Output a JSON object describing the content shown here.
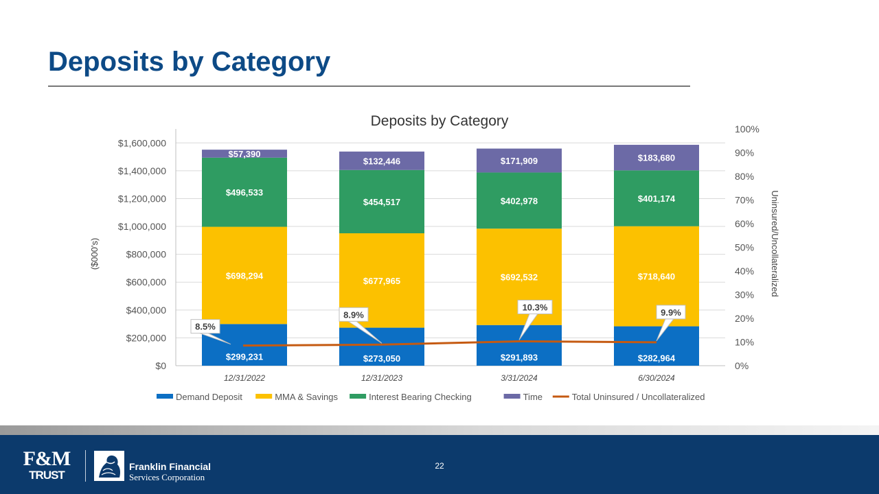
{
  "slide": {
    "title": "Deposits by Category",
    "page_number": "22"
  },
  "footer": {
    "logo_fm_mark": "F&M",
    "logo_fm_sub": "TRUST",
    "logo_ffsc_line1": "Franklin Financial",
    "logo_ffsc_line2": "Services Corporation"
  },
  "chart_data": {
    "type": "bar",
    "stacked": true,
    "title": "Deposits by Category",
    "ylabel": "($000's)",
    "y2label": "Uninsured/Uncollateralized",
    "categories": [
      "12/31/2022",
      "12/31/2023",
      "3/31/2024",
      "6/30/2024"
    ],
    "ylim": [
      0,
      1700000
    ],
    "yticks": [
      0,
      200000,
      400000,
      600000,
      800000,
      1000000,
      1200000,
      1400000,
      1600000
    ],
    "ytick_labels": [
      "$0",
      "$200,000",
      "$400,000",
      "$600,000",
      "$800,000",
      "$1,000,000",
      "$1,200,000",
      "$1,400,000",
      "$1,600,000"
    ],
    "y2lim": [
      0,
      100
    ],
    "y2ticks": [
      0,
      10,
      20,
      30,
      40,
      50,
      60,
      70,
      80,
      90,
      100
    ],
    "y2tick_labels": [
      "0%",
      "10%",
      "20%",
      "30%",
      "40%",
      "50%",
      "60%",
      "70%",
      "80%",
      "90%",
      "100%"
    ],
    "grid": true,
    "legend_position": "bottom",
    "series": [
      {
        "name": "Demand Deposit",
        "color": "#0c6fc4",
        "values": [
          299231,
          273050,
          291893,
          282964
        ],
        "labels": [
          "$299,231",
          "$273,050",
          "$291,893",
          "$282,964"
        ]
      },
      {
        "name": "MMA & Savings",
        "color": "#fcc100",
        "values": [
          698294,
          677965,
          692532,
          718640
        ],
        "labels": [
          "$698,294",
          "$677,965",
          "$692,532",
          "$718,640"
        ]
      },
      {
        "name": "Interest Bearing Checking",
        "color": "#2f9c62",
        "values": [
          496533,
          454517,
          402978,
          401174
        ],
        "labels": [
          "$496,533",
          "$454,517",
          "$402,978",
          "$401,174"
        ]
      },
      {
        "name": "Time",
        "color": "#6c6aa6",
        "values": [
          57390,
          132446,
          171909,
          183680
        ],
        "labels": [
          "$57,390",
          "$132,446",
          "$171,909",
          "$183,680"
        ]
      }
    ],
    "line_series": {
      "name": "Total Uninsured / Uncollateralized",
      "color": "#c55a11",
      "axis": "secondary",
      "values": [
        8.5,
        8.9,
        10.3,
        9.9
      ],
      "labels": [
        "8.5%",
        "8.9%",
        "10.3%",
        "9.9%"
      ]
    }
  }
}
